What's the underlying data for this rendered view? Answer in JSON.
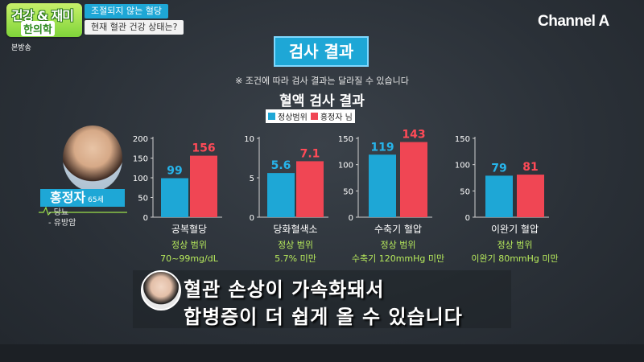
{
  "header": {
    "logo_line1": "건강 & 재미",
    "logo_line2": "한의학",
    "topic_line1": "조절되지 않는 혈당",
    "topic_line2": "현재 혈관 건강 상태는?",
    "broadcast_label": "본방송",
    "channel": "Channel A"
  },
  "panel": {
    "title": "검사 결과",
    "note": "※ 조건에 따라 검사 결과는 달라질 수 있습니다",
    "chart_title": "혈액 검사 결과",
    "legend": [
      {
        "label": "정상범위",
        "color": "#1ea7d6"
      },
      {
        "label": "홍정자 님",
        "color": "#f04654"
      }
    ]
  },
  "person": {
    "name": "홍정자",
    "age": "65세",
    "conditions": [
      "- 당뇨",
      "- 유방암"
    ]
  },
  "chart_data": [
    {
      "type": "bar",
      "category": "공복혈당",
      "normal_range": "정상 범위",
      "normal_range_value": "70~99mg/dL",
      "yticks": [
        0,
        50,
        100,
        150,
        200
      ],
      "ylim": [
        0,
        200
      ],
      "series": [
        {
          "name": "정상범위",
          "value": 99
        },
        {
          "name": "홍정자 님",
          "value": 156
        }
      ]
    },
    {
      "type": "bar",
      "category": "당화혈색소",
      "normal_range": "정상 범위",
      "normal_range_value": "5.7% 미만",
      "yticks": [
        0,
        5,
        10
      ],
      "ylim": [
        0,
        10
      ],
      "series": [
        {
          "name": "정상범위",
          "value": 5.6
        },
        {
          "name": "홍정자 님",
          "value": 7.1
        }
      ]
    },
    {
      "type": "bar",
      "category": "수축기 혈압",
      "normal_range": "정상 범위",
      "normal_range_value": "수축기 120mmHg 미만",
      "yticks": [
        0,
        50,
        100,
        150
      ],
      "ylim": [
        0,
        150
      ],
      "series": [
        {
          "name": "정상범위",
          "value": 119
        },
        {
          "name": "홍정자 님",
          "value": 143
        }
      ]
    },
    {
      "type": "bar",
      "category": "이완기 혈압",
      "normal_range": "정상 범위",
      "normal_range_value": "이완기 80mmHg 미만",
      "yticks": [
        0,
        50,
        100,
        150
      ],
      "ylim": [
        0,
        150
      ],
      "series": [
        {
          "name": "정상범위",
          "value": 79
        },
        {
          "name": "홍정자 님",
          "value": 81
        }
      ]
    }
  ],
  "subtitle": {
    "line1": "혈관 손상이 가속화돼서",
    "line2": "합병증이 더 쉽게 올 수 있습니다"
  }
}
